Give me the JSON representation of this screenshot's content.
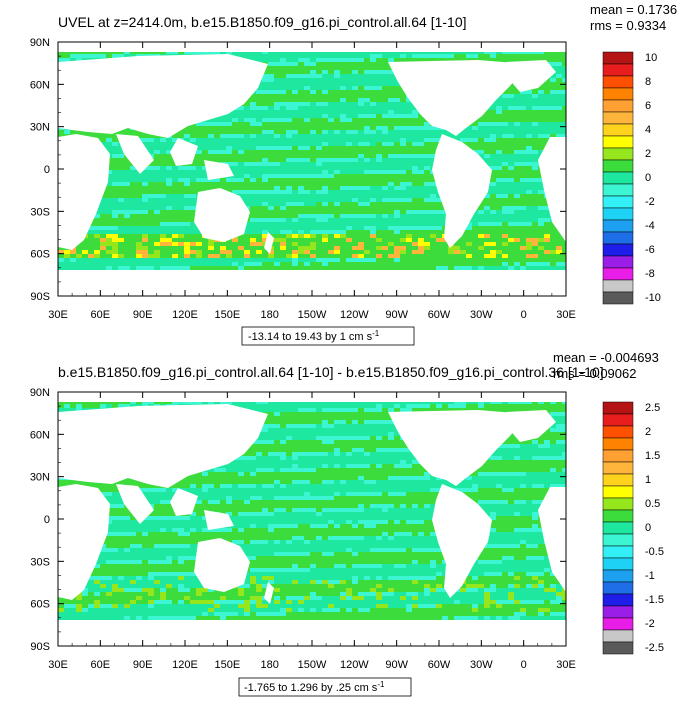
{
  "palette": [
    "#5a5a5a",
    "#c8c8c8",
    "#e81ee8",
    "#9a1ee8",
    "#1e1ee8",
    "#1e6ee8",
    "#1ea0f0",
    "#1ed2f5",
    "#32f0f5",
    "#3cf5d2",
    "#1ee8a0",
    "#3cdc3c",
    "#96e61e",
    "#ffff00",
    "#ffd21e",
    "#ffb43c",
    "#ffa032",
    "#ff8200",
    "#ff5000",
    "#e81e1e",
    "#b41414"
  ],
  "charts": [
    {
      "type": "heatmap",
      "title": "UVEL at z=2414.0m, b.e15.B1850.f09_g16.pi_control.all.64 [1-10]",
      "stats": {
        "mean": "mean = 0.1736",
        "rms": "rms = 0.9334"
      },
      "xticks": [
        "30E",
        "60E",
        "90E",
        "120E",
        "150E",
        "180",
        "150W",
        "120W",
        "90W",
        "60W",
        "30W",
        "0",
        "30E"
      ],
      "yticks": [
        "90N",
        "60N",
        "30N",
        "0",
        "30S",
        "60S",
        "90S"
      ],
      "colorbar_labels": [
        "10",
        "8",
        "6",
        "4",
        "2",
        "0",
        "-2",
        "-4",
        "-6",
        "-8",
        "-10"
      ],
      "contour_info": "-13.14 to 19.43 by 1 cm s",
      "contour_info_exp": "-1",
      "variant": "full"
    },
    {
      "type": "heatmap",
      "title": "b.e15.B1850.f09_g16.pi_control.all.64 [1-10] - b.e15.B1850.f09_g16.pi_control.36 [1-10]",
      "stats": {
        "mean": "mean = -0.004693",
        "rms": "rms = 0.09062"
      },
      "xticks": [
        "30E",
        "60E",
        "90E",
        "120E",
        "150E",
        "180",
        "150W",
        "120W",
        "90W",
        "60W",
        "30W",
        "0",
        "30E"
      ],
      "yticks": [
        "90N",
        "60N",
        "30N",
        "0",
        "30S",
        "60S",
        "90S"
      ],
      "colorbar_labels": [
        "2.5",
        "2",
        "1.5",
        "1",
        "0.5",
        "0",
        "-0.5",
        "-1",
        "-1.5",
        "-2",
        "-2.5"
      ],
      "contour_info": "-1.765 to 1.296 by .25 cm s",
      "contour_info_exp": "-1",
      "variant": "diff"
    }
  ]
}
